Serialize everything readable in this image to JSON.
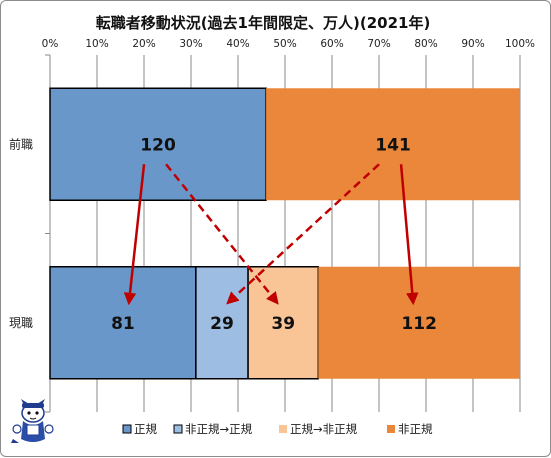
{
  "chart_data": {
    "type": "bar",
    "orientation": "horizontal",
    "stacked": "percent",
    "title": "転職者移動状況(過去1年間限定、万人)(2021年)",
    "x_ticks": [
      "0%",
      "10%",
      "20%",
      "30%",
      "40%",
      "50%",
      "60%",
      "70%",
      "80%",
      "90%",
      "100%"
    ],
    "xlim": [
      0,
      100
    ],
    "categories": [
      "前職",
      "現職"
    ],
    "series": [
      {
        "name": "正規",
        "color": "#6a97c9",
        "values": [
          120,
          81
        ]
      },
      {
        "name": "非正規→正規",
        "color": "#9dbde3",
        "values": [
          0,
          29
        ]
      },
      {
        "name": "正規→非正規",
        "color": "#f9c597",
        "values": [
          0,
          39
        ]
      },
      {
        "name": "非正規",
        "color": "#ea873a",
        "values": [
          141,
          112
        ]
      }
    ],
    "grid": true,
    "legend": "bottom",
    "arrows": [
      {
        "from": "前職.正規",
        "to": "現職.正規",
        "style": "solid",
        "color": "#c00000"
      },
      {
        "from": "前職.正規",
        "to": "現職.正規→非正規",
        "style": "dashed",
        "color": "#c00000"
      },
      {
        "from": "前職.非正規",
        "to": "現職.非正規→正規",
        "style": "dashed",
        "color": "#c00000"
      },
      {
        "from": "前職.非正規",
        "to": "現職.非正規",
        "style": "solid",
        "color": "#c00000"
      }
    ]
  },
  "mascot_icon": "cat-mascot-icon"
}
